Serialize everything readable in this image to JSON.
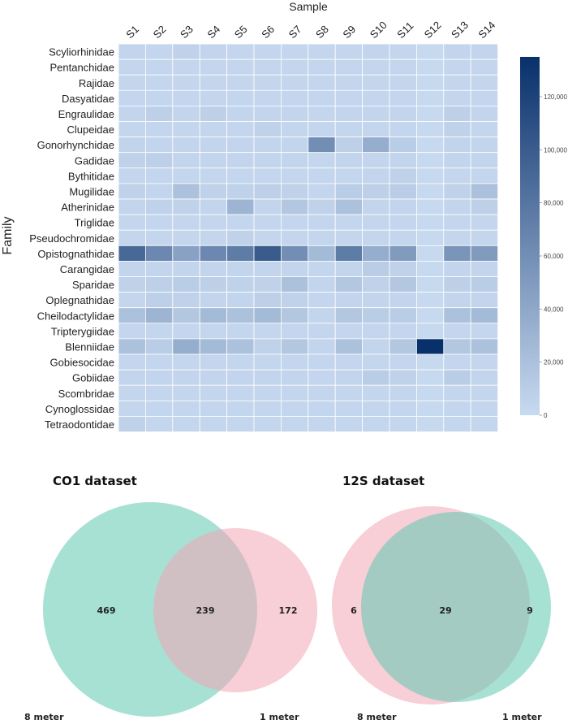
{
  "chart_data": [
    {
      "type": "heatmap",
      "title": "",
      "xlabel": "Sample",
      "ylabel": "Family",
      "x": [
        "S1",
        "S2",
        "S3",
        "S4",
        "S5",
        "S6",
        "S7",
        "S8",
        "S9",
        "S10",
        "S11",
        "S12",
        "S13",
        "S14"
      ],
      "y": [
        "Scyliorhinidae",
        "Pentanchidae",
        "Rajidae",
        "Dasyatidae",
        "Engraulidae",
        "Clupeidae",
        "Gonorhynchidae",
        "Gadidae",
        "Bythitidae",
        "Mugilidae",
        "Atherinidae",
        "Triglidae",
        "Pseudochromidae",
        "Opistognathidae",
        "Carangidae",
        "Sparidae",
        "Oplegnathidae",
        "Cheilodactylidae",
        "Tripterygiidae",
        "Blenniidae",
        "Gobiesocidae",
        "Gobiidae",
        "Scombridae",
        "Cynoglossidae",
        "Tetraodontidae"
      ],
      "values": [
        [
          4000,
          3000,
          6000,
          4000,
          3000,
          3000,
          3000,
          3000,
          3000,
          4000,
          3000,
          1000,
          4000,
          4000
        ],
        [
          3000,
          3000,
          3000,
          3000,
          3000,
          3000,
          3000,
          3000,
          3000,
          3000,
          3000,
          1000,
          3000,
          3000
        ],
        [
          3000,
          3000,
          3000,
          3000,
          3000,
          3000,
          3000,
          3000,
          3000,
          3000,
          3000,
          1000,
          3000,
          3000
        ],
        [
          3000,
          3000,
          3000,
          3000,
          3000,
          3000,
          3000,
          3000,
          3000,
          3000,
          3000,
          1000,
          3000,
          3000
        ],
        [
          4000,
          8000,
          4000,
          8000,
          4000,
          4000,
          4000,
          3000,
          4000,
          4000,
          4000,
          1000,
          8000,
          4000
        ],
        [
          3000,
          3000,
          3000,
          3000,
          3000,
          6000,
          3000,
          3000,
          3000,
          3000,
          3000,
          1000,
          6000,
          3000
        ],
        [
          5000,
          4000,
          4000,
          4000,
          4000,
          4000,
          4000,
          60000,
          8000,
          35000,
          10000,
          1000,
          5000,
          4000
        ],
        [
          6000,
          8000,
          4000,
          4000,
          4000,
          4000,
          4000,
          3000,
          4000,
          4000,
          4000,
          1000,
          4000,
          4000
        ],
        [
          3000,
          3000,
          3000,
          3000,
          3000,
          3000,
          3000,
          3000,
          3000,
          4000,
          6000,
          1000,
          3000,
          3000
        ],
        [
          6000,
          4000,
          20000,
          6000,
          6000,
          8000,
          6000,
          3000,
          10000,
          8000,
          10000,
          1000,
          6000,
          20000
        ],
        [
          4000,
          6000,
          6000,
          4000,
          30000,
          4000,
          15000,
          6000,
          20000,
          4000,
          4000,
          1000,
          4000,
          8000
        ],
        [
          3000,
          3000,
          3000,
          3000,
          3000,
          3000,
          3000,
          3000,
          3000,
          3000,
          3000,
          1000,
          3000,
          3000
        ],
        [
          3000,
          3000,
          3000,
          3000,
          6000,
          3000,
          3000,
          3000,
          3000,
          3000,
          3000,
          1000,
          3000,
          3000
        ],
        [
          90000,
          65000,
          45000,
          65000,
          75000,
          100000,
          60000,
          25000,
          75000,
          35000,
          50000,
          1000,
          55000,
          50000
        ],
        [
          4000,
          4000,
          4000,
          4000,
          4000,
          4000,
          4000,
          3000,
          4000,
          10000,
          6000,
          1000,
          4000,
          4000
        ],
        [
          6000,
          8000,
          10000,
          8000,
          6000,
          6000,
          20000,
          4000,
          15000,
          6000,
          15000,
          1000,
          8000,
          10000
        ],
        [
          3000,
          8000,
          6000,
          4000,
          4000,
          8000,
          6000,
          3000,
          4000,
          4000,
          4000,
          1000,
          4000,
          4000
        ],
        [
          20000,
          30000,
          15000,
          25000,
          20000,
          25000,
          15000,
          4000,
          15000,
          10000,
          10000,
          1000,
          20000,
          25000
        ],
        [
          3000,
          3000,
          3000,
          3000,
          3000,
          3000,
          3000,
          3000,
          3000,
          3000,
          3000,
          1000,
          3000,
          3000
        ],
        [
          20000,
          10000,
          35000,
          25000,
          20000,
          6000,
          15000,
          4000,
          20000,
          4000,
          15000,
          135000,
          15000,
          20000
        ],
        [
          3000,
          3000,
          3000,
          3000,
          3000,
          3000,
          3000,
          3000,
          3000,
          3000,
          3000,
          1000,
          3000,
          3000
        ],
        [
          4000,
          4000,
          4000,
          4000,
          4000,
          4000,
          4000,
          3000,
          4000,
          10000,
          6000,
          1000,
          10000,
          4000
        ],
        [
          3000,
          3000,
          3000,
          3000,
          3000,
          3000,
          3000,
          3000,
          3000,
          3000,
          3000,
          1000,
          3000,
          3000
        ],
        [
          3000,
          3000,
          3000,
          3000,
          3000,
          3000,
          3000,
          3000,
          3000,
          3000,
          3000,
          1000,
          3000,
          3000
        ],
        [
          6000,
          3000,
          3000,
          3000,
          3000,
          3000,
          3000,
          3000,
          3000,
          3000,
          3000,
          1000,
          3000,
          3000
        ]
      ],
      "colorbar": {
        "range": [
          0,
          135000
        ],
        "ticks": [
          0,
          20000,
          40000,
          60000,
          80000,
          100000,
          120000
        ],
        "tick_labels": [
          "0",
          "20,000",
          "40,000",
          "60,000",
          "80,000",
          "100,000",
          "120,000"
        ],
        "color_low": "#c8daf0",
        "color_high": "#08306b"
      },
      "grid_color": "#ffffff"
    },
    {
      "type": "venn",
      "title": "CO1 dataset",
      "sets": [
        {
          "name": "8 meter",
          "only": 469,
          "color": "#5ec8b0"
        },
        {
          "name": "1 meter",
          "only": 172,
          "color": "#f3a6b6"
        }
      ],
      "intersection": 239
    },
    {
      "type": "venn",
      "title": "12S dataset",
      "sets": [
        {
          "name": "8 meter",
          "only": 6,
          "color": "#f3a6b6"
        },
        {
          "name": "1 meter",
          "only": 9,
          "color": "#5ec8b0"
        }
      ],
      "intersection": 29
    }
  ]
}
